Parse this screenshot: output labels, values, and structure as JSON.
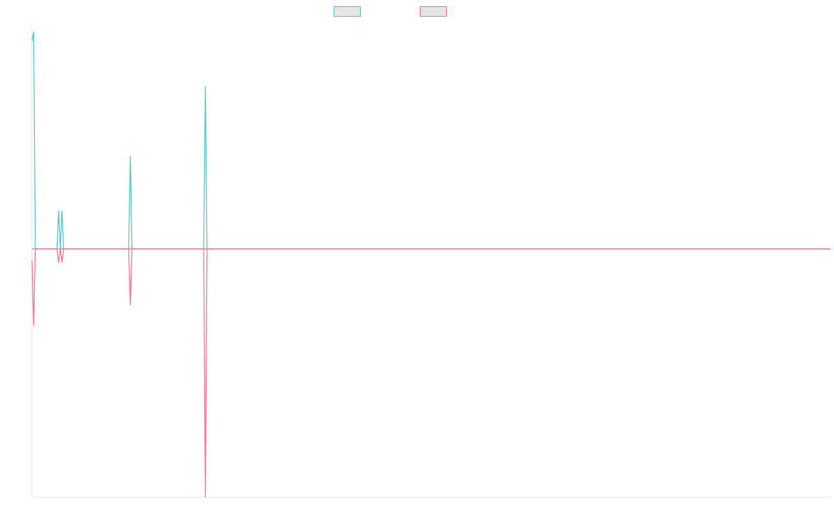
{
  "chart_data": {
    "type": "line",
    "title": "",
    "xlabel": "",
    "ylabel": "",
    "x": [
      0,
      1,
      2,
      3,
      4,
      5,
      6,
      7,
      8,
      9,
      10,
      11,
      12,
      13,
      14,
      15,
      16,
      17,
      18,
      19,
      20,
      21,
      22,
      23,
      24,
      25,
      26,
      27,
      28,
      29,
      30,
      31,
      32,
      33,
      34,
      35,
      36,
      37,
      38,
      39,
      40,
      41,
      42,
      43,
      44,
      45,
      46,
      47,
      48,
      49,
      50,
      51,
      52,
      53,
      54,
      55,
      56,
      57,
      58,
      59,
      60,
      61,
      62,
      63,
      64,
      65,
      66,
      67,
      68,
      69,
      70,
      71,
      72,
      73,
      74,
      75,
      76,
      77,
      78,
      79,
      80,
      81,
      82,
      83,
      84,
      85,
      86,
      87,
      88,
      89,
      90,
      91,
      92,
      93,
      94,
      95,
      96,
      97,
      98,
      99,
      100,
      101,
      102,
      103,
      104,
      105,
      106,
      107,
      108,
      109,
      110,
      111,
      112,
      113,
      114,
      115,
      116,
      117,
      118,
      119,
      120,
      121,
      122,
      123,
      124,
      125,
      126,
      127,
      128,
      129,
      130,
      131,
      132,
      133,
      134,
      135,
      136,
      137,
      138,
      139,
      140,
      141,
      142,
      143,
      144,
      145,
      146,
      147,
      148,
      149,
      150,
      151,
      152,
      153,
      154,
      155,
      156,
      157,
      158,
      159,
      160,
      161,
      162,
      163,
      164,
      165,
      166,
      167,
      168,
      169,
      170,
      171,
      172,
      173,
      174,
      175,
      176,
      177,
      178,
      179,
      180,
      181,
      182,
      183,
      184,
      185,
      186,
      187,
      188,
      189,
      190,
      191,
      192,
      193,
      194,
      195,
      196,
      197,
      198,
      199,
      200,
      201,
      202,
      203,
      204,
      205,
      206,
      207,
      208,
      209,
      210,
      211,
      212,
      213,
      214,
      215,
      216,
      217,
      218,
      219,
      220,
      221,
      222,
      223,
      224,
      225,
      226,
      227,
      228,
      229,
      230,
      231,
      232,
      233,
      234,
      235,
      236,
      237,
      238,
      239,
      240,
      241,
      242,
      243,
      244,
      245,
      246,
      247,
      248,
      249,
      250,
      251,
      252,
      253,
      254,
      255,
      256,
      257,
      258,
      259,
      260,
      261,
      262,
      263,
      264,
      265,
      266,
      267,
      268,
      269,
      270,
      271,
      272,
      273,
      274,
      275,
      276,
      277,
      278,
      279,
      280,
      281,
      282,
      283,
      284,
      285,
      286,
      287,
      288,
      289,
      290,
      291,
      292,
      293,
      294,
      295,
      296,
      297,
      298,
      299,
      300,
      301,
      302,
      303,
      304,
      305,
      306,
      307,
      308,
      309,
      310,
      311,
      312,
      313,
      314,
      315,
      316,
      317,
      318,
      319,
      320,
      321,
      322,
      323,
      324,
      325,
      326,
      327,
      328,
      329,
      330,
      331,
      332,
      333,
      334,
      335,
      336,
      337,
      338,
      339,
      340,
      341,
      342,
      343,
      344,
      345,
      346,
      347,
      348,
      349,
      350,
      351,
      352,
      353,
      354,
      355,
      356,
      357,
      358,
      359,
      360,
      361,
      362,
      363,
      364,
      365,
      366,
      367,
      368,
      369,
      370,
      371,
      372,
      373,
      374,
      375,
      376,
      377,
      378,
      379,
      380,
      381,
      382,
      383,
      384,
      385,
      386,
      387,
      388,
      389,
      390,
      391,
      392,
      393,
      394,
      395,
      396,
      397,
      398,
      399,
      400,
      401,
      402,
      403,
      404,
      405,
      406,
      407,
      408,
      409,
      410,
      411,
      412,
      413,
      414,
      415,
      416,
      417,
      418,
      419,
      420,
      421,
      422,
      423,
      424,
      425,
      426,
      427,
      428,
      429,
      430,
      431,
      432,
      433,
      434,
      435,
      436,
      437,
      438,
      439,
      440,
      441,
      442,
      443,
      444,
      445,
      446,
      447,
      448,
      449,
      450,
      451,
      452,
      453,
      454,
      455,
      456,
      457,
      458,
      459,
      460,
      461,
      462,
      463,
      464,
      465,
      466,
      467,
      468,
      469,
      470,
      471,
      472,
      473,
      474,
      475,
      476,
      477,
      478,
      479
    ],
    "series": [
      {
        "name": "",
        "color": "#4bc0c0",
        "points": [
          [
            0,
            0.92
          ],
          [
            1,
            0.96
          ],
          [
            2,
            0
          ],
          [
            15,
            0
          ],
          [
            16,
            0.17
          ],
          [
            17,
            0
          ],
          [
            18,
            0.17
          ],
          [
            19,
            0
          ],
          [
            58,
            0
          ],
          [
            59,
            0.41
          ],
          [
            60,
            0
          ],
          [
            103,
            0
          ],
          [
            104,
            0.72
          ],
          [
            105,
            0
          ],
          [
            479,
            0
          ]
        ]
      },
      {
        "name": "",
        "color": "#ff6384",
        "points": [
          [
            0,
            -0.05
          ],
          [
            1,
            -0.34
          ],
          [
            2,
            0
          ],
          [
            15,
            0
          ],
          [
            16,
            -0.06
          ],
          [
            17,
            0
          ],
          [
            18,
            -0.06
          ],
          [
            19,
            0
          ],
          [
            58,
            0
          ],
          [
            59,
            -0.25
          ],
          [
            60,
            0
          ],
          [
            103,
            0
          ],
          [
            104,
            -1.1
          ],
          [
            105,
            0
          ],
          [
            479,
            0
          ]
        ]
      }
    ],
    "xlim": [
      0,
      479
    ],
    "ylim": [
      -1.1,
      1.0
    ],
    "grid": false,
    "legend_position": "top-center",
    "legend_labels_visible": false
  }
}
